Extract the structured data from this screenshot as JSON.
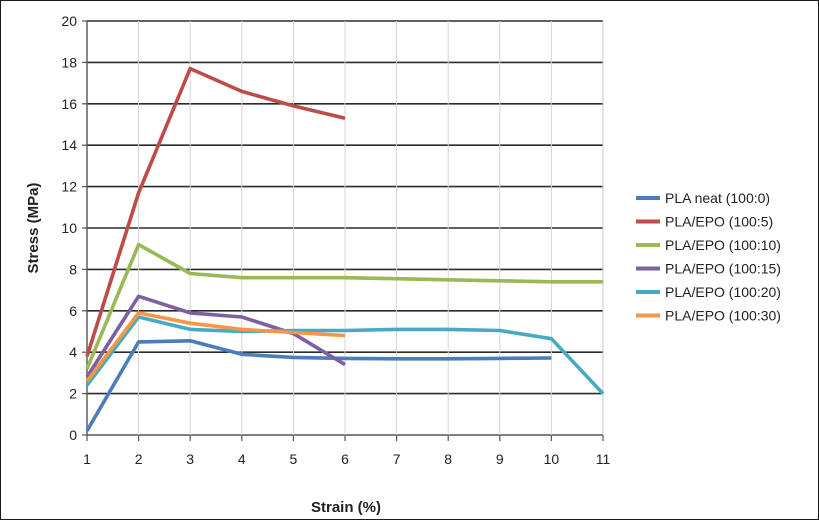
{
  "chart_data": {
    "type": "line",
    "title": "",
    "xlabel": "Strain (%)",
    "ylabel": "Stress (MPa)",
    "xlim": [
      1,
      11
    ],
    "ylim": [
      0,
      20
    ],
    "x_ticks": [
      "1",
      "2",
      "3",
      "4",
      "5",
      "6",
      "7",
      "8",
      "9",
      "10",
      "11"
    ],
    "y_ticks": [
      "0",
      "2",
      "4",
      "6",
      "8",
      "10",
      "12",
      "14",
      "16",
      "18",
      "20"
    ],
    "grid": "horizontal",
    "legend_position": "right",
    "series": [
      {
        "name": "PLA neat (100:0)",
        "color": "#4a7ebb",
        "x": [
          1,
          2,
          3,
          4,
          5,
          6,
          7,
          8,
          9,
          10
        ],
        "y": [
          0.2,
          4.5,
          4.55,
          3.9,
          3.75,
          3.7,
          3.68,
          3.68,
          3.7,
          3.72
        ]
      },
      {
        "name": "PLA/EPO (100:5)",
        "color": "#be4b48",
        "x": [
          1,
          2,
          3,
          4,
          5,
          6
        ],
        "y": [
          3.8,
          11.7,
          17.7,
          16.6,
          15.9,
          15.3
        ]
      },
      {
        "name": "PLA/EPO (100:10)",
        "color": "#98b954",
        "x": [
          1,
          2,
          3,
          4,
          5,
          6,
          7,
          8,
          9,
          10,
          11
        ],
        "y": [
          3.2,
          9.2,
          7.8,
          7.6,
          7.6,
          7.6,
          7.55,
          7.5,
          7.45,
          7.4,
          7.4
        ]
      },
      {
        "name": "PLA/EPO (100:15)",
        "color": "#7d60a0",
        "x": [
          1,
          2,
          3,
          4,
          5,
          6
        ],
        "y": [
          2.8,
          6.7,
          5.9,
          5.7,
          4.9,
          3.4
        ]
      },
      {
        "name": "PLA/EPO (100:20)",
        "color": "#46aac5",
        "x": [
          1,
          2,
          3,
          4,
          5,
          6,
          7,
          8,
          9,
          10,
          11
        ],
        "y": [
          2.4,
          5.7,
          5.1,
          5.0,
          5.05,
          5.05,
          5.1,
          5.1,
          5.05,
          4.65,
          2.0
        ]
      },
      {
        "name": "PLA/EPO (100:30)",
        "color": "#f79646",
        "x": [
          1,
          2,
          3,
          4,
          5,
          6
        ],
        "y": [
          2.6,
          5.9,
          5.4,
          5.1,
          4.95,
          4.8
        ]
      }
    ]
  }
}
